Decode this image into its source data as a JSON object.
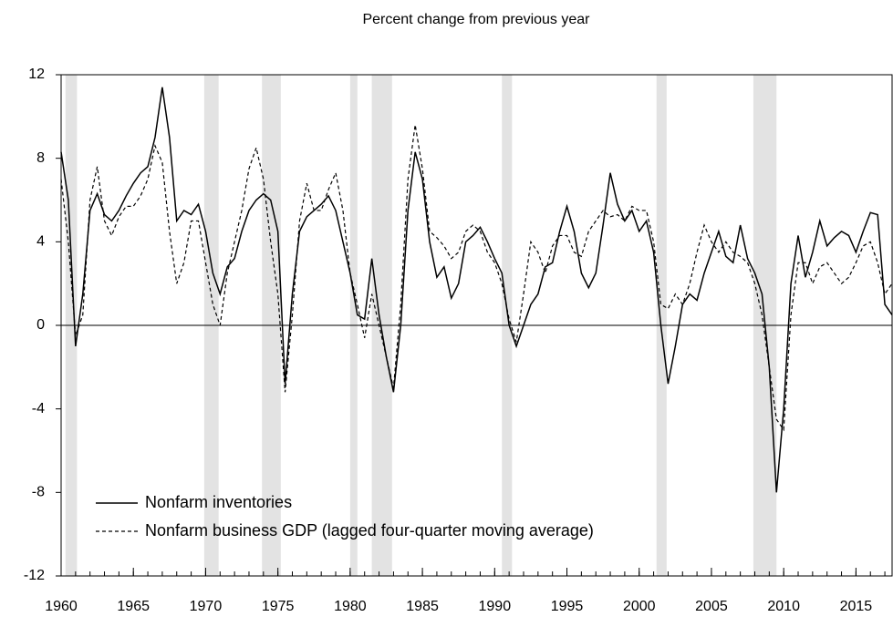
{
  "chart_data": {
    "type": "line",
    "title": "Percent change from previous year",
    "x": [
      1960.0,
      1960.5,
      1961.0,
      1961.5,
      1962.0,
      1962.5,
      1963.0,
      1963.5,
      1964.0,
      1964.5,
      1965.0,
      1965.5,
      1966.0,
      1966.5,
      1967.0,
      1967.5,
      1968.0,
      1968.5,
      1969.0,
      1969.5,
      1970.0,
      1970.5,
      1971.0,
      1971.5,
      1972.0,
      1972.5,
      1973.0,
      1973.5,
      1974.0,
      1974.5,
      1975.0,
      1975.5,
      1976.0,
      1976.5,
      1977.0,
      1977.5,
      1978.0,
      1978.5,
      1979.0,
      1979.5,
      1980.0,
      1980.5,
      1981.0,
      1981.5,
      1982.0,
      1982.5,
      1983.0,
      1983.5,
      1984.0,
      1984.5,
      1985.0,
      1985.5,
      1986.0,
      1986.5,
      1987.0,
      1987.5,
      1988.0,
      1988.5,
      1989.0,
      1989.5,
      1990.0,
      1990.5,
      1991.0,
      1991.5,
      1992.0,
      1992.5,
      1993.0,
      1993.5,
      1994.0,
      1994.5,
      1995.0,
      1995.5,
      1996.0,
      1996.5,
      1997.0,
      1997.5,
      1998.0,
      1998.5,
      1999.0,
      1999.5,
      2000.0,
      2000.5,
      2001.0,
      2001.5,
      2002.0,
      2002.5,
      2003.0,
      2003.5,
      2004.0,
      2004.5,
      2005.0,
      2005.5,
      2006.0,
      2006.5,
      2007.0,
      2007.5,
      2008.0,
      2008.5,
      2009.0,
      2009.5,
      2010.0,
      2010.5,
      2011.0,
      2011.5,
      2012.0,
      2012.5,
      2013.0,
      2013.5,
      2014.0,
      2014.5,
      2015.0,
      2015.5,
      2016.0,
      2016.5,
      2017.0,
      2017.5
    ],
    "series": [
      {
        "name": "Nonfarm inventories",
        "color": "#000000",
        "dash": false,
        "values": [
          8.3,
          6.0,
          -1.0,
          1.5,
          5.5,
          6.3,
          5.3,
          5.0,
          5.5,
          6.2,
          6.8,
          7.3,
          7.6,
          9.0,
          11.4,
          9.0,
          5.0,
          5.5,
          5.3,
          5.8,
          4.5,
          2.5,
          1.5,
          2.8,
          3.2,
          4.5,
          5.5,
          6.0,
          6.3,
          6.0,
          4.5,
          -2.8,
          1.5,
          4.5,
          5.2,
          5.5,
          5.8,
          6.2,
          5.5,
          4.0,
          2.5,
          0.5,
          0.3,
          3.2,
          0.5,
          -1.5,
          -3.2,
          0.0,
          5.5,
          8.3,
          7.0,
          4.0,
          2.3,
          2.8,
          1.3,
          2.0,
          4.0,
          4.3,
          4.7,
          4.0,
          3.2,
          2.5,
          0.0,
          -1.0,
          0.0,
          1.0,
          1.5,
          2.8,
          3.0,
          4.5,
          5.7,
          4.5,
          2.5,
          1.8,
          2.5,
          4.8,
          7.3,
          5.8,
          5.0,
          5.5,
          4.5,
          5.0,
          3.5,
          0.0,
          -2.8,
          -1.0,
          1.0,
          1.5,
          1.2,
          2.5,
          3.5,
          4.5,
          3.3,
          3.0,
          4.8,
          3.2,
          2.5,
          1.5,
          -2.0,
          -8.0,
          -4.0,
          2.0,
          4.3,
          2.3,
          3.5,
          5.0,
          3.8,
          4.2,
          4.5,
          4.3,
          3.5,
          4.5,
          5.4,
          5.3,
          1.0,
          0.5
        ]
      },
      {
        "name": "Nonfarm business GDP (lagged four-quarter moving average)",
        "color": "#000000",
        "dash": true,
        "values": [
          7.0,
          4.0,
          -0.5,
          0.5,
          6.0,
          7.6,
          5.0,
          4.3,
          5.2,
          5.7,
          5.7,
          6.2,
          7.0,
          8.6,
          7.8,
          4.5,
          2.0,
          3.0,
          5.0,
          5.0,
          3.0,
          1.0,
          0.0,
          2.5,
          4.0,
          5.5,
          7.5,
          8.5,
          7.0,
          4.0,
          1.5,
          -3.2,
          0.5,
          5.0,
          6.8,
          5.5,
          5.5,
          6.5,
          7.3,
          5.5,
          2.5,
          1.0,
          -0.6,
          1.5,
          0.0,
          -1.5,
          -3.0,
          1.0,
          7.0,
          9.6,
          7.5,
          4.5,
          4.2,
          3.8,
          3.2,
          3.5,
          4.5,
          4.8,
          4.5,
          3.5,
          3.0,
          2.0,
          0.3,
          -0.8,
          1.5,
          4.0,
          3.5,
          2.5,
          3.8,
          4.3,
          4.3,
          3.5,
          3.3,
          4.5,
          5.0,
          5.5,
          5.2,
          5.3,
          5.0,
          5.7,
          5.5,
          5.5,
          4.0,
          1.0,
          0.8,
          1.5,
          1.0,
          2.0,
          3.5,
          4.8,
          4.0,
          3.5,
          4.0,
          3.5,
          3.3,
          3.0,
          2.0,
          0.5,
          -2.0,
          -4.5,
          -5.0,
          0.5,
          3.0,
          3.0,
          2.0,
          2.8,
          3.0,
          2.5,
          2.0,
          2.3,
          3.0,
          3.8,
          4.0,
          3.0,
          1.5,
          2.0
        ]
      }
    ],
    "shaded_periods": [
      [
        1960.3,
        1961.1
      ],
      [
        1969.9,
        1970.9
      ],
      [
        1973.9,
        1975.2
      ],
      [
        1980.0,
        1980.5
      ],
      [
        1981.5,
        1982.9
      ],
      [
        1990.5,
        1991.2
      ],
      [
        2001.2,
        2001.9
      ],
      [
        2007.9,
        2009.5
      ]
    ],
    "shade_color": "#e3e3e3",
    "xlim": [
      1960,
      2017.5
    ],
    "xticks": [
      1960,
      1965,
      1970,
      1975,
      1980,
      1985,
      1990,
      1995,
      2000,
      2005,
      2010,
      2015
    ],
    "xminorticks": [
      1960,
      1961,
      1962,
      1963,
      1964,
      1965,
      1966,
      1967,
      1968,
      1969,
      1970,
      1971,
      1972,
      1973,
      1974,
      1975,
      1976,
      1977,
      1978,
      1979,
      1980,
      1981,
      1982,
      1983,
      1984,
      1985,
      1986,
      1987,
      1988,
      1989,
      1990,
      1991,
      1992,
      1993,
      1994,
      1995,
      1996,
      1997,
      1998,
      1999,
      2000,
      2001,
      2002,
      2003,
      2004,
      2005,
      2006,
      2007,
      2008,
      2009,
      2010,
      2011,
      2012,
      2013,
      2014,
      2015,
      2016,
      2017
    ],
    "ylim": [
      -12,
      12
    ],
    "yticks": [
      -12,
      -8,
      -4,
      0,
      4,
      8,
      12
    ],
    "zero_line": true,
    "legend": "lower left"
  }
}
